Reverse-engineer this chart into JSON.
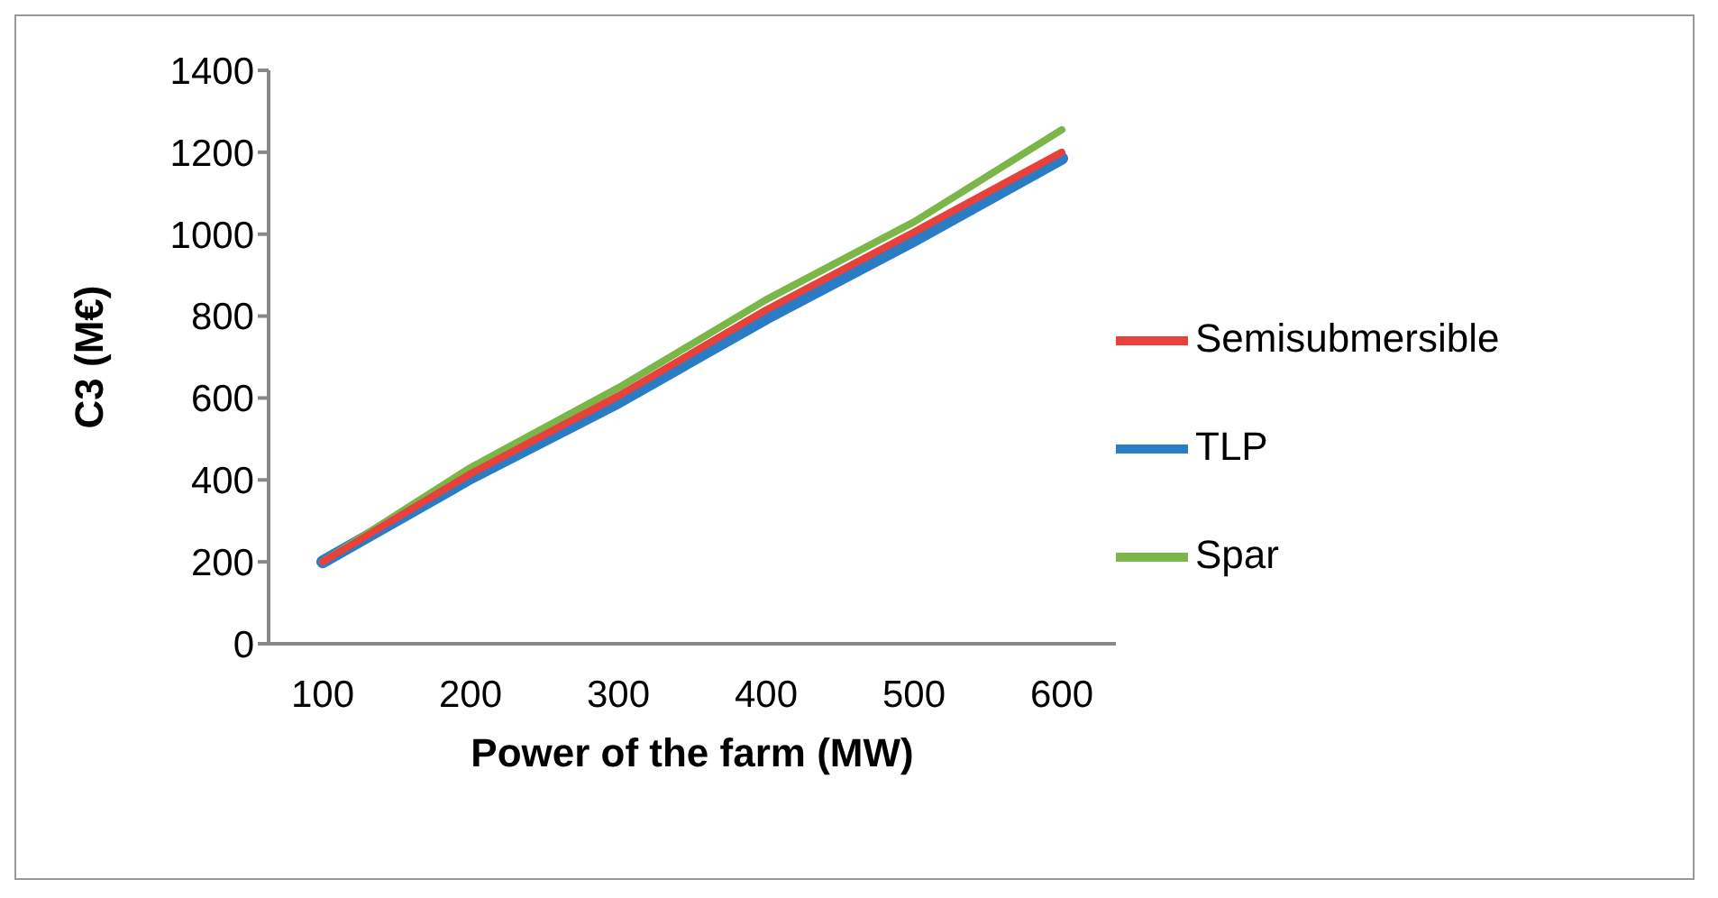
{
  "chart_data": {
    "type": "line",
    "xlabel": "Power of the farm (MW)",
    "ylabel": "C3 (M€)",
    "categories": [
      "100",
      "200",
      "300",
      "400",
      "500",
      "600"
    ],
    "series": [
      {
        "name": "Semisubmersible",
        "color": "#e8413c",
        "values": [
          200,
          415,
          605,
          815,
          1005,
          1200
        ]
      },
      {
        "name": "TLP",
        "color": "#2a7dc4",
        "values": [
          200,
          405,
          590,
          795,
          985,
          1185
        ]
      },
      {
        "name": "Spar",
        "color": "#7ab648",
        "values": [
          200,
          430,
          625,
          840,
          1030,
          1255
        ]
      }
    ],
    "ylim": [
      0,
      1400
    ],
    "yticks": [
      0,
      200,
      400,
      600,
      800,
      1000,
      1200,
      1400
    ],
    "grid": false,
    "legend": "right",
    "marker": "none"
  }
}
